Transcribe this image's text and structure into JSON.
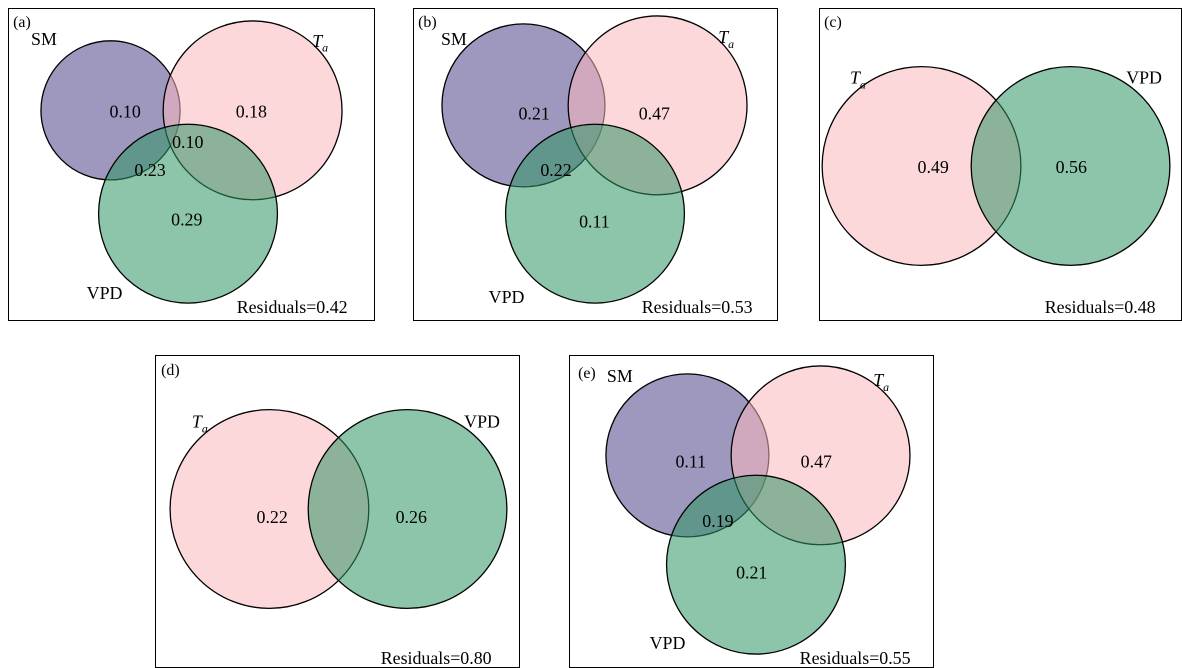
{
  "colors": {
    "SM": "#4f4488",
    "Ta": "#f9b8bd",
    "VPD": "#2f9665",
    "outline": "#000000"
  },
  "panels": {
    "a": {
      "label": "(a)",
      "names": {
        "SM": "SM",
        "Ta_main": "T",
        "Ta_sub": "a",
        "VPD": "VPD"
      },
      "values": {
        "SM": "0.10",
        "Ta": "0.18",
        "VPD": "0.29",
        "SM_Ta": "0.10",
        "SM_VPD": "0.23"
      },
      "residuals": "Residuals=0.42"
    },
    "b": {
      "label": "(b)",
      "names": {
        "SM": "SM",
        "Ta_main": "T",
        "Ta_sub": "a",
        "VPD": "VPD"
      },
      "values": {
        "SM": "0.21",
        "Ta": "0.47",
        "VPD": "0.11",
        "SM_VPD": "0.22"
      },
      "residuals": "Residuals=0.53"
    },
    "c": {
      "label": "(c)",
      "names": {
        "Ta_main": "T",
        "Ta_sub": "a",
        "VPD": "VPD"
      },
      "values": {
        "Ta": "0.49",
        "VPD": "0.56"
      },
      "residuals": "Residuals=0.48"
    },
    "d": {
      "label": "(d)",
      "names": {
        "Ta_main": "T",
        "Ta_sub": "a",
        "VPD": "VPD"
      },
      "values": {
        "Ta": "0.22",
        "VPD": "0.26"
      },
      "residuals": "Residuals=0.80"
    },
    "e": {
      "label": "(e)",
      "names": {
        "SM": "SM",
        "Ta_main": "T",
        "Ta_sub": "a",
        "VPD": "VPD"
      },
      "values": {
        "SM": "0.11",
        "Ta": "0.47",
        "VPD": "0.21",
        "SM_VPD": "0.19"
      },
      "residuals": "Residuals=0.55"
    }
  }
}
